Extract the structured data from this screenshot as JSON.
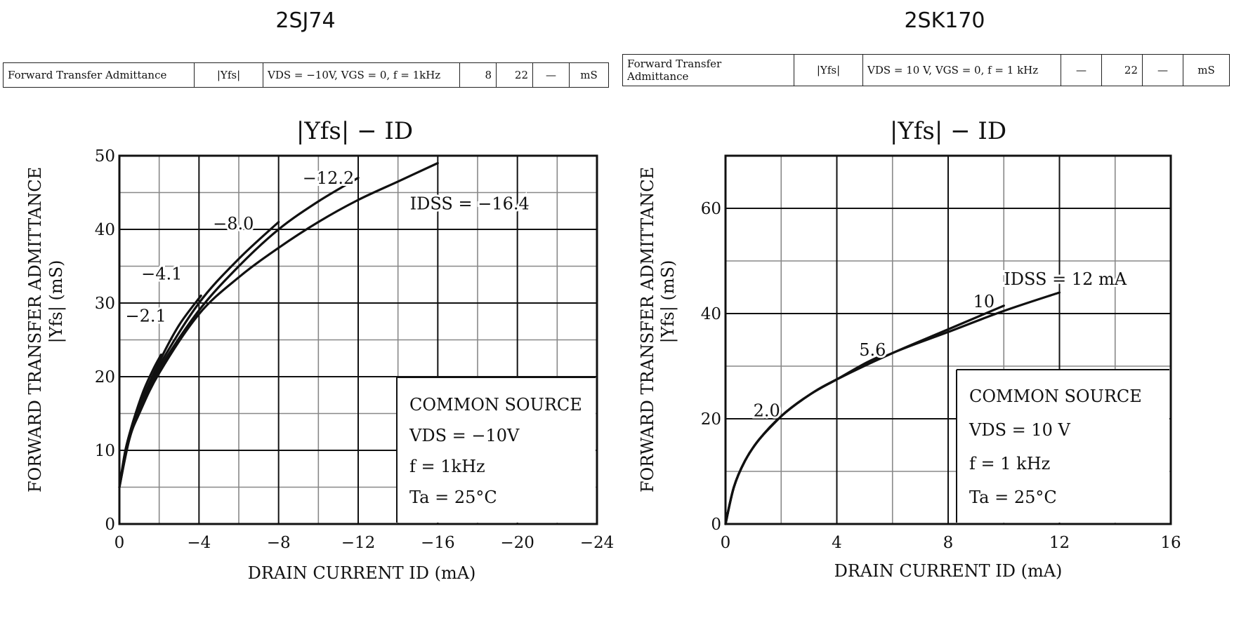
{
  "parts": [
    {
      "part_title": "2SJ74",
      "spec_row": {
        "characteristic": "Forward Transfer Admittance",
        "symbol": "|Yfs|",
        "condition": "VDS = −10V, VGS = 0, f = 1kHz",
        "min": "8",
        "typ": "22",
        "max": "—",
        "unit": "mS"
      }
    },
    {
      "part_title": "2SK170",
      "spec_row": {
        "characteristic_line1": "Forward Transfer",
        "characteristic_line2": "Admittance",
        "symbol": "|Yfs|",
        "condition": "VDS = 10 V, VGS = 0, f = 1 kHz",
        "min": "—",
        "typ": "22",
        "max": "—",
        "unit": "mS"
      }
    }
  ],
  "chart_data": [
    {
      "type": "line",
      "title": "|Yfs| − ID",
      "xlabel": "DRAIN CURRENT   ID   (mA)",
      "ylabel_line1": "FORWARD TRANSFER ADMITTANCE",
      "ylabel_line2": "|Yfs|   (mS)",
      "xlim": [
        0,
        -24
      ],
      "ylim": [
        0,
        50
      ],
      "x_ticks": [
        "0",
        "−4",
        "−8",
        "−12",
        "−16",
        "−20",
        "−24"
      ],
      "y_ticks": [
        "0",
        "10",
        "20",
        "30",
        "40",
        "50"
      ],
      "grid": true,
      "conditions": [
        "COMMON SOURCE",
        "VDS = −10V",
        "f = 1kHz",
        "Ta = 25°C"
      ],
      "series": [
        {
          "name": "−2.1",
          "x": [
            0,
            -0.3,
            -0.7,
            -1.2,
            -1.7,
            -2.1
          ],
          "y": [
            5,
            10,
            14,
            18,
            21,
            23
          ]
        },
        {
          "name": "−4.1",
          "x": [
            0,
            -0.5,
            -1,
            -2,
            -3,
            -4.1
          ],
          "y": [
            5,
            12,
            16,
            22,
            27,
            31
          ]
        },
        {
          "name": "−8.0",
          "x": [
            0,
            -0.5,
            -1,
            -2,
            -4,
            -6,
            -8
          ],
          "y": [
            5,
            12,
            16,
            21.5,
            30,
            36,
            41
          ]
        },
        {
          "name": "−12.2",
          "x": [
            0,
            -0.5,
            -1,
            -2,
            -4,
            -6,
            -8,
            -10,
            -12
          ],
          "y": [
            5,
            12,
            15.5,
            21,
            29,
            35,
            40,
            43.8,
            47
          ]
        },
        {
          "name": "IDSS = −16.4",
          "x": [
            0,
            -0.5,
            -1,
            -2,
            -4,
            -6,
            -8,
            -10,
            -12,
            -14,
            -16
          ],
          "y": [
            5,
            11.5,
            15,
            20.5,
            28.5,
            33.5,
            37.5,
            41,
            44,
            46.5,
            49
          ]
        }
      ]
    },
    {
      "type": "line",
      "title": "|Yfs| − ID",
      "xlabel": "DRAIN CURRENT   ID   (mA)",
      "ylabel_line1": "FORWARD TRANSFER ADMITTANCE",
      "ylabel_line2": "|Yfs|   (mS)",
      "xlim": [
        0,
        16
      ],
      "ylim": [
        0,
        70
      ],
      "x_ticks": [
        "0",
        "4",
        "8",
        "12",
        "16"
      ],
      "y_ticks": [
        "0",
        "20",
        "40",
        "60"
      ],
      "grid": true,
      "conditions": [
        "COMMON SOURCE",
        "VDS = 10 V",
        "f = 1 kHz",
        "Ta = 25°C"
      ],
      "series": [
        {
          "name": "2.0",
          "x": [
            0,
            0.3,
            0.7,
            1.2,
            2.0
          ],
          "y": [
            0,
            7,
            12,
            16,
            20.5
          ]
        },
        {
          "name": "5.6",
          "x": [
            0,
            0.3,
            0.7,
            1.2,
            2,
            3,
            4,
            5,
            5.6
          ],
          "y": [
            0,
            7,
            12,
            16,
            20.5,
            24.5,
            27.5,
            30.5,
            32
          ]
        },
        {
          "name": "10",
          "x": [
            0,
            0.3,
            0.7,
            1.2,
            2,
            3,
            4,
            6,
            8,
            10
          ],
          "y": [
            0,
            7,
            12,
            16,
            20.5,
            24.5,
            27.5,
            32.5,
            37,
            41.5
          ]
        },
        {
          "name": "IDSS = 12 mA",
          "x": [
            0,
            0.3,
            0.7,
            1.2,
            2,
            3,
            4,
            6,
            8,
            10,
            12
          ],
          "y": [
            0,
            7,
            12,
            16,
            20.5,
            24.5,
            27.5,
            32.5,
            36.5,
            40.5,
            44
          ]
        }
      ]
    }
  ]
}
